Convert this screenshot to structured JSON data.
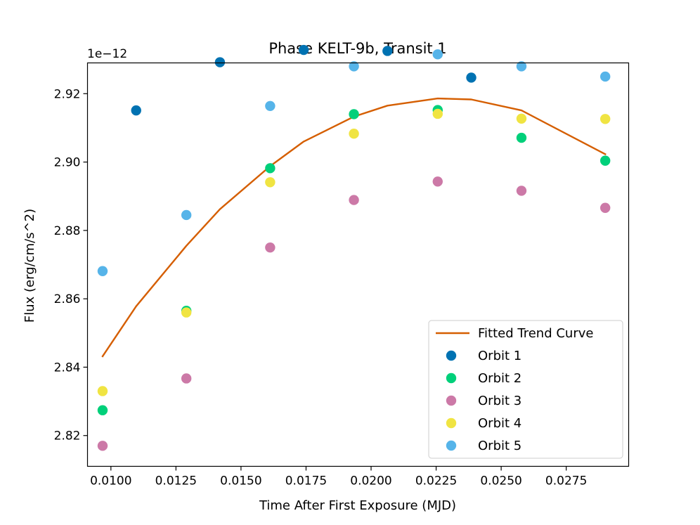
{
  "chart_data": {
    "type": "scatter",
    "title": "Phase KELT-9b, Transit 1",
    "xlabel": "Time After First Exposure (MJD)",
    "ylabel": "Flux (erg/cm/s^2)",
    "offset_label": "1e−12",
    "xlim": [
      0.0091,
      0.0299
    ],
    "ylim": [
      2.811,
      2.929
    ],
    "x_ticks": [
      0.01,
      0.0125,
      0.015,
      0.0175,
      0.02,
      0.0225,
      0.025,
      0.0275
    ],
    "x_tick_labels": [
      "0.0100",
      "0.0125",
      "0.0150",
      "0.0175",
      "0.0200",
      "0.0225",
      "0.0250",
      "0.0275"
    ],
    "y_ticks": [
      2.82,
      2.84,
      2.86,
      2.88,
      2.9,
      2.92
    ],
    "y_tick_labels": [
      "2.82",
      "2.84",
      "2.86",
      "2.88",
      "2.90",
      "2.92"
    ],
    "legend_position": "lower-right",
    "trend": {
      "name": "Fitted Trend Curve",
      "color": "#d55e00",
      "x": [
        0.00968,
        0.01097,
        0.0129,
        0.01419,
        0.01612,
        0.01741,
        0.01934,
        0.02063,
        0.02256,
        0.02385,
        0.02578,
        0.029
      ],
      "y": [
        2.8432,
        2.8578,
        2.8755,
        2.8862,
        2.8988,
        2.906,
        2.9133,
        2.9165,
        2.9186,
        2.9183,
        2.9151,
        2.9023
      ]
    },
    "series": [
      {
        "name": "Orbit 1",
        "color": "#0072b2",
        "x": [
          0.01097,
          0.01419,
          0.01741,
          0.02063,
          0.02385
        ],
        "y": [
          2.9151,
          2.9292,
          2.9328,
          2.9325,
          2.9247
        ]
      },
      {
        "name": "Orbit 2",
        "color": "#00d07a",
        "x": [
          0.00968,
          0.0129,
          0.01612,
          0.01934,
          0.02256,
          0.02578,
          0.029
        ],
        "y": [
          2.8274,
          2.8565,
          2.8982,
          2.914,
          2.9152,
          2.9071,
          2.9004
        ]
      },
      {
        "name": "Orbit 3",
        "color": "#cc79a7",
        "x": [
          0.00968,
          0.0129,
          0.01612,
          0.01934,
          0.02256,
          0.02578,
          0.029
        ],
        "y": [
          2.817,
          2.8367,
          2.875,
          2.8889,
          2.8943,
          2.8916,
          2.8866
        ]
      },
      {
        "name": "Orbit 4",
        "color": "#f0e442",
        "x": [
          0.00968,
          0.0129,
          0.01612,
          0.01934,
          0.02256,
          0.02578,
          0.029
        ],
        "y": [
          2.833,
          2.856,
          2.8941,
          2.9083,
          2.9141,
          2.9127,
          2.9126
        ]
      },
      {
        "name": "Orbit 5",
        "color": "#56b4e9",
        "x": [
          0.00968,
          0.0129,
          0.01612,
          0.01934,
          0.02256,
          0.02578,
          0.029
        ],
        "y": [
          2.8681,
          2.8845,
          2.9164,
          2.928,
          2.9315,
          2.928,
          2.925
        ]
      }
    ]
  }
}
